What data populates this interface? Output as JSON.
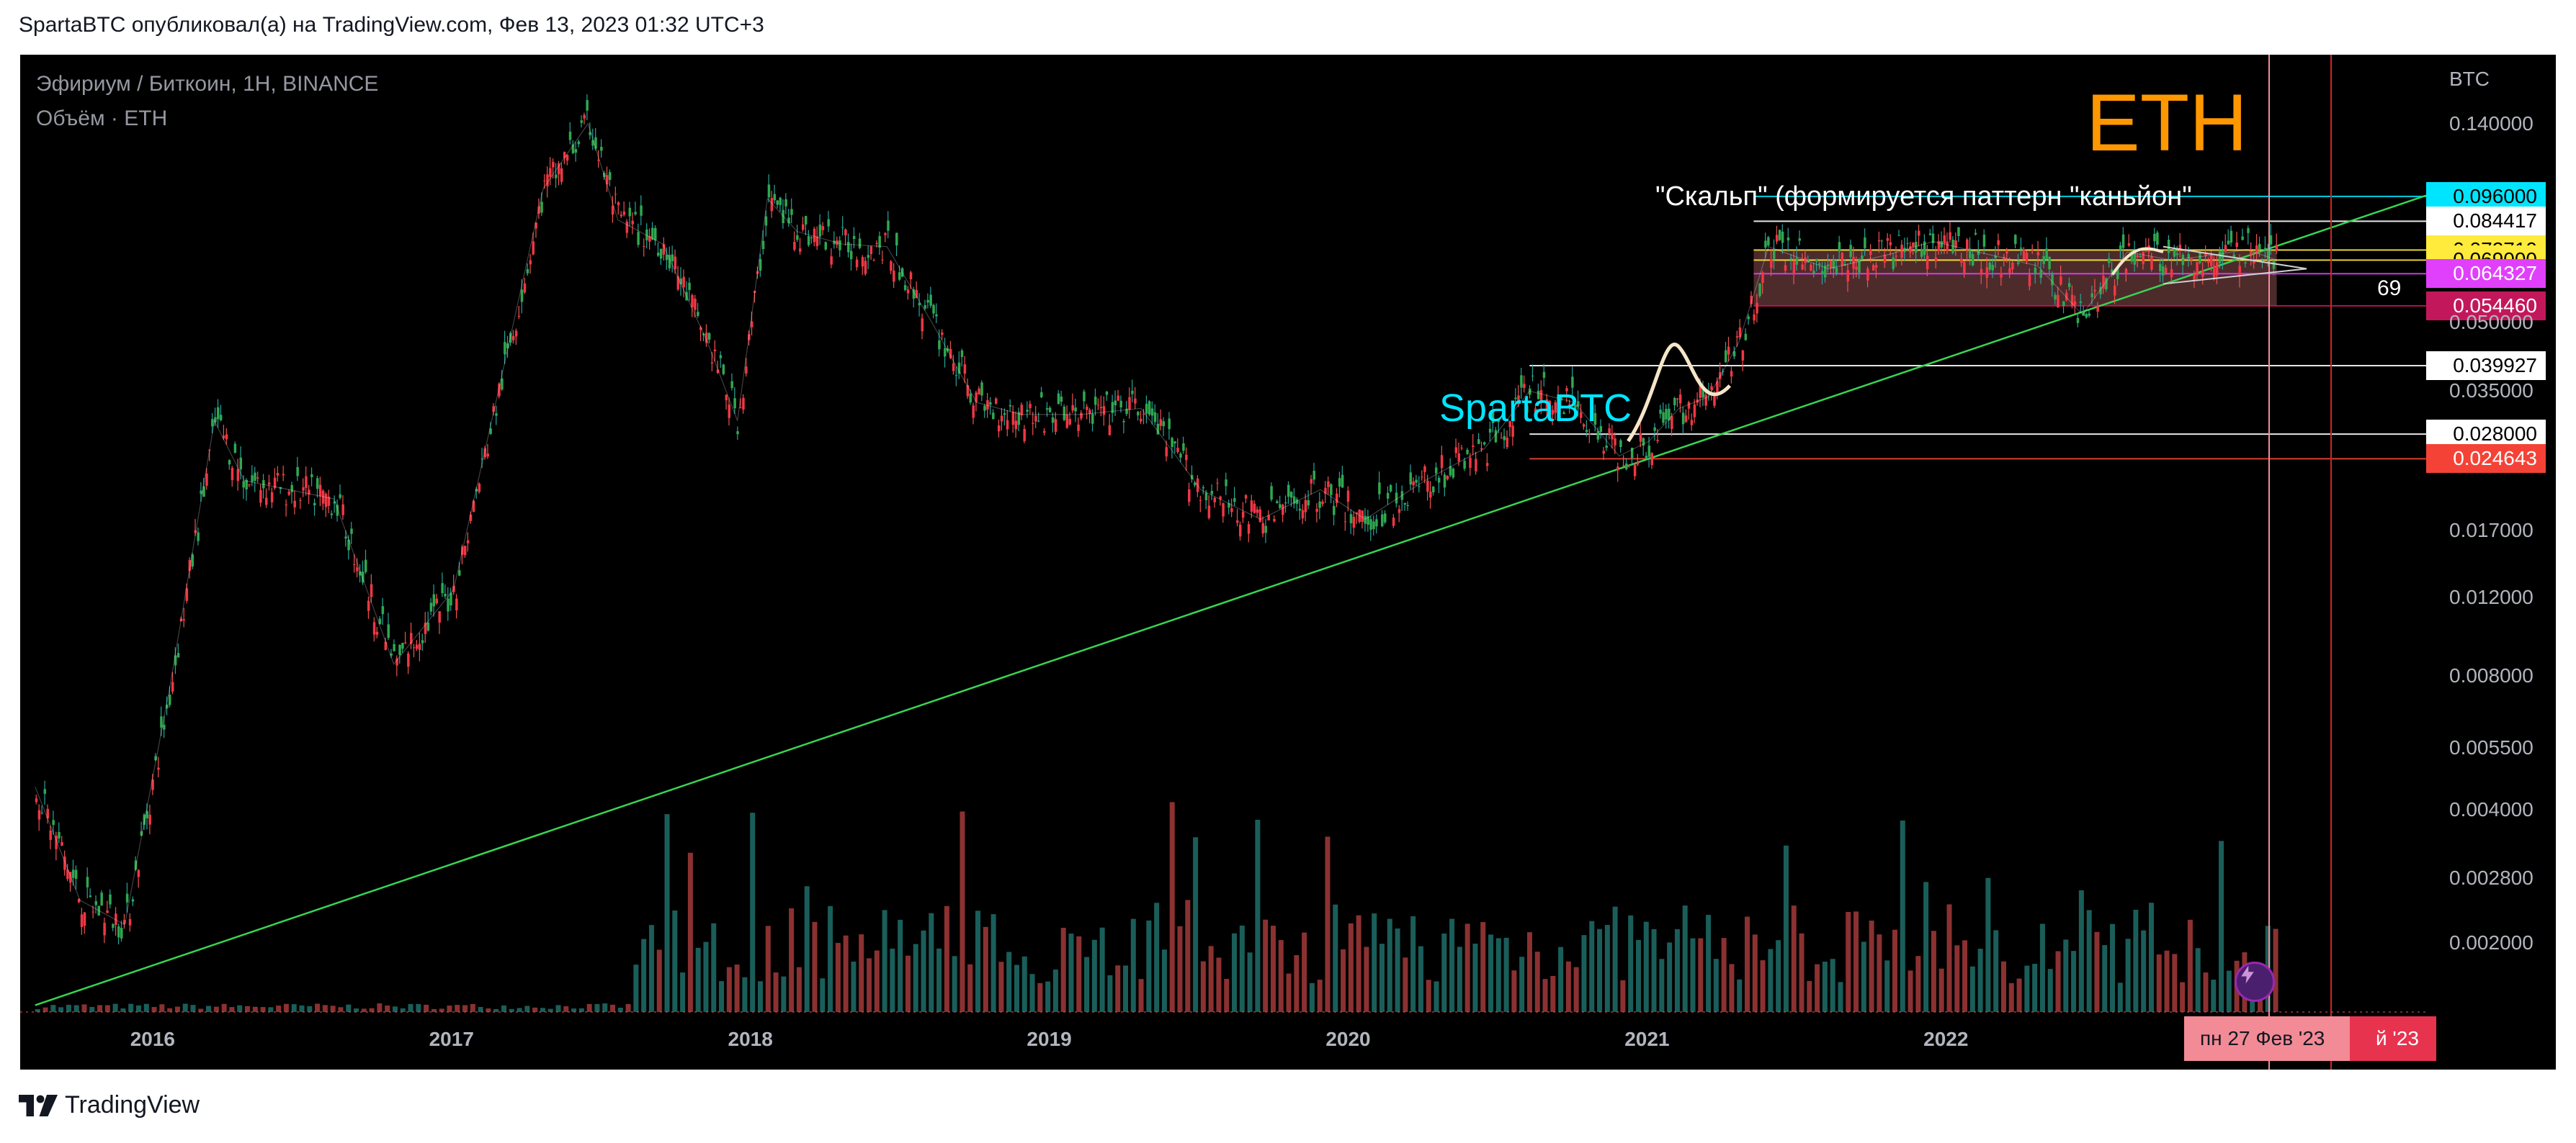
{
  "caption": "SpartaBTC опубликовал(а) на TradingView.com, Фев 13, 2023 01:32 UTC+3",
  "brand": "TradingView",
  "legend": {
    "symbol": "Эфириум / Биткоин, 1H, BINANCE",
    "volume": "Объём · ETH"
  },
  "annotations": {
    "eth": "ETH",
    "author": "SpartaBTC",
    "scalp": "\"Скальп\" (формируется паттерн \"каньйон\"",
    "count": "69"
  },
  "colors": {
    "up": "#26a69a",
    "down": "#ef5350",
    "trendline": "#39d353",
    "box": "#8d4f4f"
  },
  "chart_data": {
    "type": "line",
    "title": "Эфириум / Биткоин, 1H, BINANCE",
    "scale": "log",
    "ylabel": "BTC",
    "ylim": [
      0.0014,
      0.16
    ],
    "xlim": [
      2015.55,
      2023.6
    ],
    "x_tick_labels": [
      "2016",
      "2017",
      "2018",
      "2019",
      "2020",
      "2021",
      "2022"
    ],
    "x_ticks": [
      2016.0,
      2017.0,
      2018.0,
      2019.0,
      2020.0,
      2021.0,
      2022.0
    ],
    "y_tick_labels": [
      "0.140000",
      "0.050000",
      "0.035000",
      "0.017000",
      "0.012000",
      "0.008000",
      "0.005500",
      "0.004000",
      "0.002800",
      "0.002000"
    ],
    "y_ticks": [
      0.14,
      0.05,
      0.035,
      0.017,
      0.012,
      0.008,
      0.0055,
      0.004,
      0.0028,
      0.002
    ],
    "price_tags": [
      {
        "label": "0.096000",
        "value": 0.096,
        "bg": "#00e5ff",
        "fg": "#000000"
      },
      {
        "label": "0.084417",
        "value": 0.084417,
        "bg": "#ffffff",
        "fg": "#000000"
      },
      {
        "label": "0.072710",
        "value": 0.07271,
        "bg": "#ffeb3b",
        "fg": "#000000"
      },
      {
        "label": "0.069000",
        "value": 0.069,
        "bg": "#ffeb3b",
        "fg": "#000000"
      },
      {
        "label": "0.064327",
        "value": 0.064327,
        "bg": "#e040fb",
        "fg": "#ffffff"
      },
      {
        "label": "0.054460",
        "value": 0.05446,
        "bg": "#c2185b",
        "fg": "#ffffff"
      },
      {
        "label": "0.039927",
        "value": 0.039927,
        "bg": "#ffffff",
        "fg": "#000000"
      },
      {
        "label": "0.028000",
        "value": 0.028,
        "bg": "#ffffff",
        "fg": "#000000"
      },
      {
        "label": "0.024643",
        "value": 0.024643,
        "bg": "#f44336",
        "fg": "#ffffff"
      }
    ],
    "series": [
      {
        "name": "ETHBTC",
        "x": [
          2015.6,
          2015.75,
          2015.9,
          2016.05,
          2016.2,
          2016.3,
          2016.45,
          2016.6,
          2016.8,
          2017.0,
          2017.15,
          2017.3,
          2017.45,
          2017.55,
          2017.7,
          2017.85,
          2017.95,
          2018.05,
          2018.15,
          2018.3,
          2018.45,
          2018.6,
          2018.75,
          2018.9,
          2019.1,
          2019.3,
          2019.5,
          2019.7,
          2019.9,
          2020.05,
          2020.25,
          2020.45,
          2020.6,
          2020.75,
          2020.9,
          2021.0,
          2021.1,
          2021.2,
          2021.3,
          2021.4,
          2021.6,
          2021.8,
          2021.95,
          2022.1,
          2022.3,
          2022.45,
          2022.6,
          2022.75,
          2022.9,
          2023.0,
          2023.1
        ],
        "values": [
          0.0045,
          0.0025,
          0.0022,
          0.0075,
          0.03,
          0.022,
          0.021,
          0.02,
          0.0085,
          0.0125,
          0.035,
          0.1,
          0.14,
          0.085,
          0.075,
          0.045,
          0.03,
          0.095,
          0.08,
          0.075,
          0.074,
          0.05,
          0.033,
          0.031,
          0.031,
          0.032,
          0.021,
          0.018,
          0.021,
          0.018,
          0.022,
          0.026,
          0.035,
          0.033,
          0.025,
          0.027,
          0.032,
          0.034,
          0.045,
          0.074,
          0.066,
          0.071,
          0.076,
          0.072,
          0.067,
          0.052,
          0.072,
          0.069,
          0.071,
          0.073,
          0.069
        ]
      }
    ]
  }
}
